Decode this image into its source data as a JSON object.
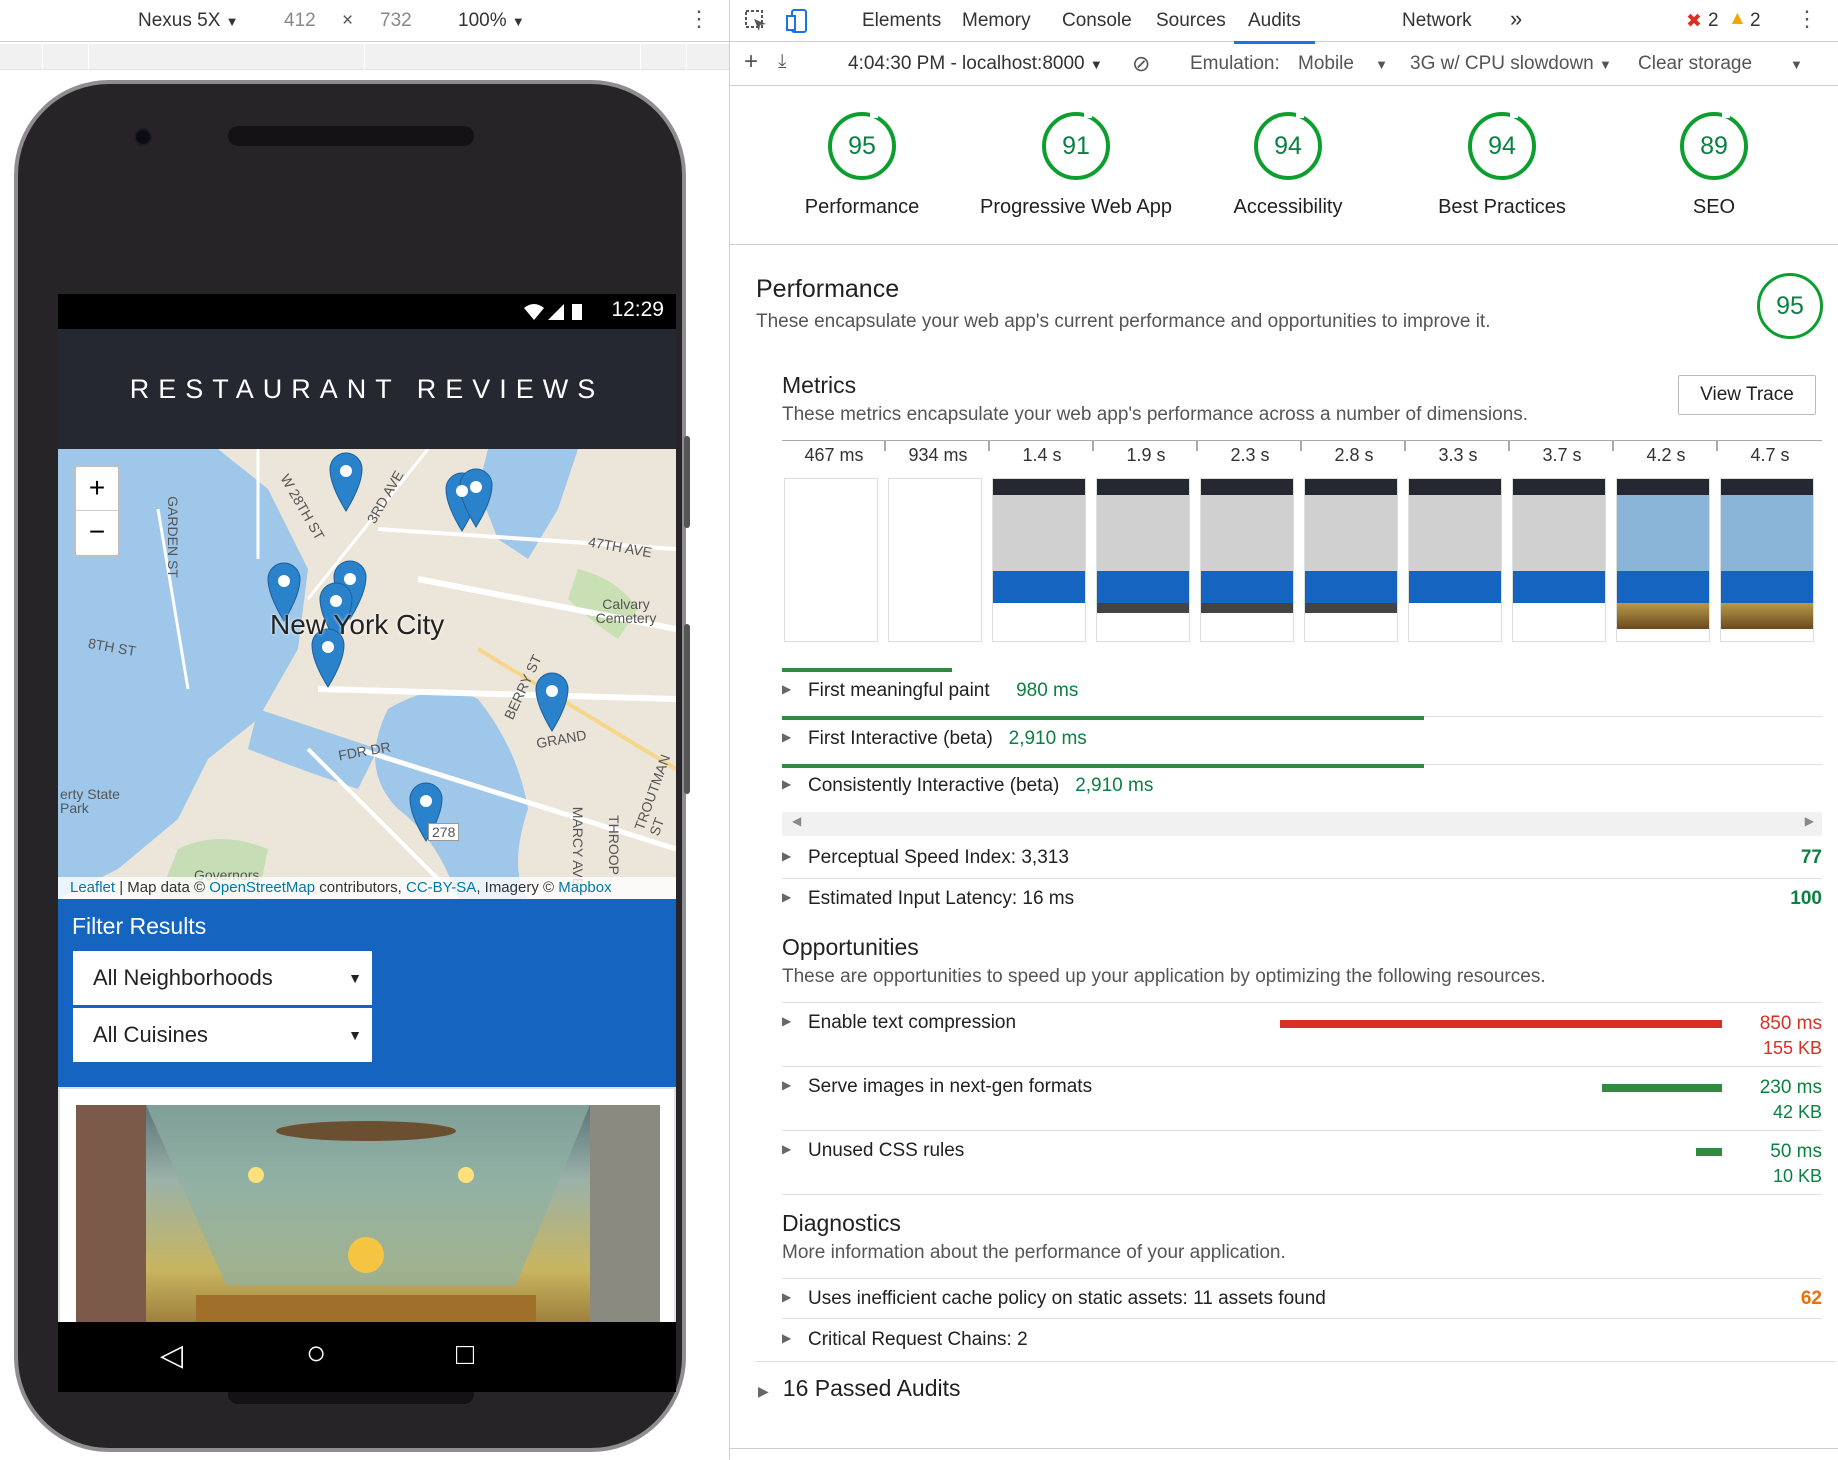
{
  "device_toolbar": {
    "device": "Nexus 5X",
    "width": "412",
    "times": "×",
    "height": "732",
    "zoom": "100%"
  },
  "phone": {
    "time": "12:29",
    "app_title": "RESTAURANT REVIEWS",
    "map": {
      "zoom_in": "+",
      "zoom_out": "−",
      "city_label": "New York City",
      "labels": [
        "W 28TH ST",
        "3RD AVE",
        "47TH AVE",
        "Calvary Cemetery",
        "8TH ST",
        "GARDEN ST",
        "BERRY ST",
        "GRAND",
        "FDR DR",
        "Governors",
        "erty State Park",
        "MARCY AVE",
        "THROOP",
        "TROUTMAN ST",
        "278"
      ],
      "attribution": {
        "leaflet": "Leaflet",
        "sep": " | Map data © ",
        "osm": "OpenStreetMap",
        "contrib": " contributors, ",
        "license": "CC-BY-SA",
        "imagery": ", Imagery © ",
        "mapbox": "Mapbox"
      }
    },
    "filter": {
      "title": "Filter Results",
      "neighborhood": "All Neighborhoods",
      "cuisine": "All Cuisines"
    },
    "nav": {
      "back": "◁",
      "home": "○",
      "recent": "□"
    }
  },
  "devtools": {
    "tabs": [
      "Elements",
      "Memory",
      "Console",
      "Sources",
      "Audits",
      "Network"
    ],
    "more": "»",
    "errors": "2",
    "warnings": "2",
    "audit_bar": {
      "report": "4:04:30 PM - localhost:8000",
      "emulation_label": "Emulation:",
      "emulation_value": "Mobile",
      "throttling": "3G w/ CPU slowdown",
      "clear_storage": "Clear storage"
    },
    "scores": [
      {
        "value": "95",
        "label": "Performance"
      },
      {
        "value": "91",
        "label": "Progressive Web App"
      },
      {
        "value": "94",
        "label": "Accessibility"
      },
      {
        "value": "94",
        "label": "Best Practices"
      },
      {
        "value": "89",
        "label": "SEO"
      }
    ],
    "performance": {
      "title": "Performance",
      "description": "These encapsulate your web app's current performance and opportunities to improve it.",
      "score": "95",
      "metrics": {
        "title": "Metrics",
        "description": "These metrics encapsulate your web app's performance across a number of dimensions.",
        "view_trace": "View Trace",
        "timeline": [
          "467 ms",
          "934 ms",
          "1.4 s",
          "1.9 s",
          "2.3 s",
          "2.8 s",
          "3.3 s",
          "3.7 s",
          "4.2 s",
          "4.7 s"
        ],
        "fmp": {
          "name": "First meaningful paint",
          "value": "980 ms"
        },
        "fi": {
          "name": "First Interactive (beta)",
          "value": "2,910 ms"
        },
        "ci": {
          "name": "Consistently Interactive (beta)",
          "value": "2,910 ms"
        },
        "psi": {
          "name": "Perceptual Speed Index: 3,313",
          "score": "77"
        },
        "eil": {
          "name": "Estimated Input Latency: 16 ms",
          "score": "100"
        }
      },
      "opportunities": {
        "title": "Opportunities",
        "description": "These are opportunities to speed up your application by optimizing the following resources.",
        "items": [
          {
            "name": "Enable text compression",
            "time": "850 ms",
            "size": "155 KB",
            "color": "#d93025"
          },
          {
            "name": "Serve images in next-gen formats",
            "time": "230 ms",
            "size": "42 KB",
            "color": "#2e8b3f"
          },
          {
            "name": "Unused CSS rules",
            "time": "50 ms",
            "size": "10 KB",
            "color": "#2e8b3f"
          }
        ]
      },
      "diagnostics": {
        "title": "Diagnostics",
        "description": "More information about the performance of your application.",
        "cache": {
          "name": "Uses inefficient cache policy on static assets: 11 assets found",
          "score": "62"
        },
        "crc": {
          "name": "Critical Request Chains: 2"
        }
      },
      "passed": "16 Passed Audits"
    }
  }
}
